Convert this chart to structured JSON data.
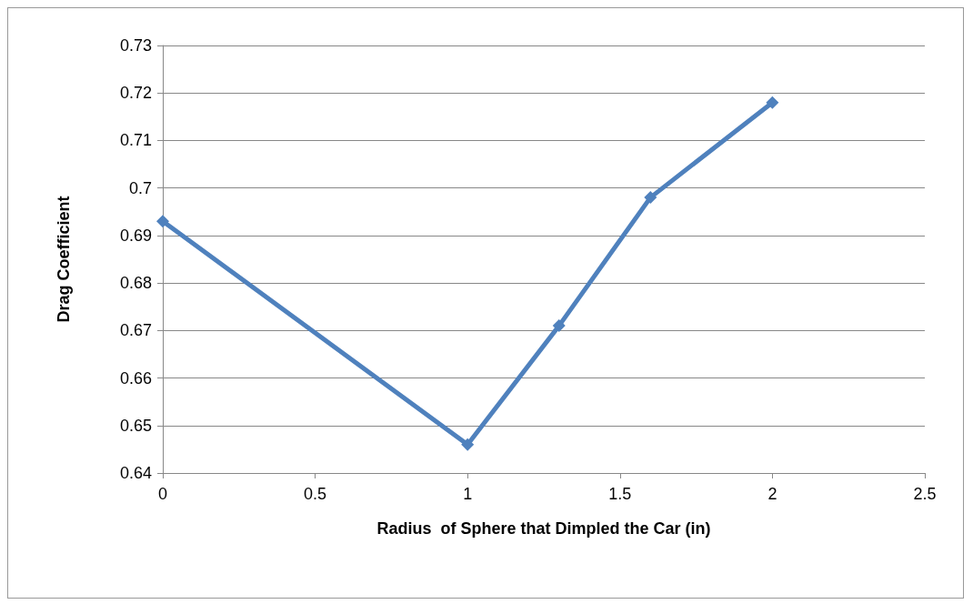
{
  "chart_data": {
    "type": "line",
    "xlabel": "Radius  of Sphere that Dimpled the Car (in)",
    "ylabel": "Drag Coefficient",
    "x": [
      0,
      1,
      1.3,
      1.6,
      2
    ],
    "series": [
      {
        "color": "#4f81bd",
        "values": [
          0.693,
          0.646,
          0.671,
          0.698,
          0.718
        ]
      }
    ],
    "xlim": [
      0,
      2.5
    ],
    "xticks": [
      0,
      0.5,
      1,
      1.5,
      2,
      2.5
    ],
    "ylim": [
      0.64,
      0.73
    ],
    "yticks": [
      0.64,
      0.65,
      0.66,
      0.67,
      0.68,
      0.69,
      0.7,
      0.71,
      0.72,
      0.73
    ],
    "grid": "y",
    "marker": "diamond",
    "line_style": "solid"
  }
}
